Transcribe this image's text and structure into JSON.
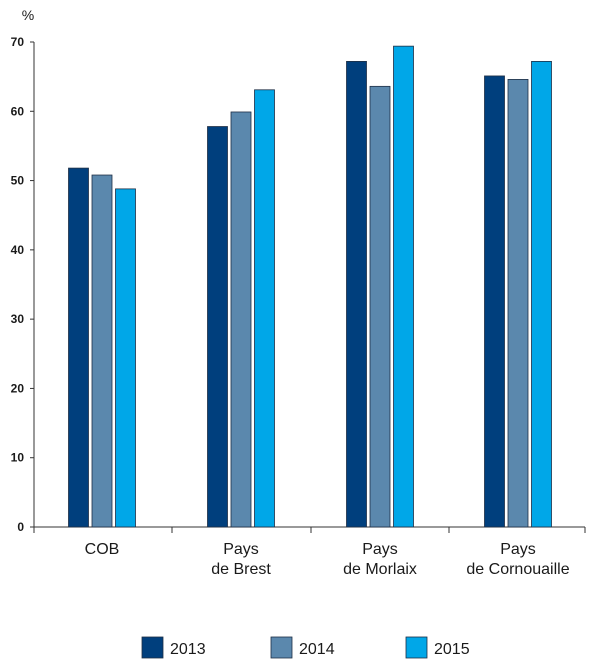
{
  "chart_data": {
    "type": "bar",
    "unit_label": "%",
    "categories": [
      [
        "COB"
      ],
      [
        "Pays",
        "de Brest"
      ],
      [
        "Pays",
        "de Morlaix"
      ],
      [
        "Pays",
        "de Cornouaille"
      ]
    ],
    "series": [
      {
        "name": "2013",
        "color": "#003f7d",
        "values": [
          51.8,
          57.8,
          67.2,
          65.1
        ]
      },
      {
        "name": "2014",
        "color": "#5b88ad",
        "values": [
          50.8,
          59.9,
          63.6,
          64.6
        ]
      },
      {
        "name": "2015",
        "color": "#00a7e8",
        "values": [
          48.8,
          63.1,
          69.4,
          67.2
        ]
      }
    ],
    "y_ticks": [
      0,
      10,
      20,
      30,
      40,
      50,
      60,
      70
    ],
    "ylim": [
      0,
      70
    ],
    "grid": false,
    "legend_position": "bottom"
  }
}
